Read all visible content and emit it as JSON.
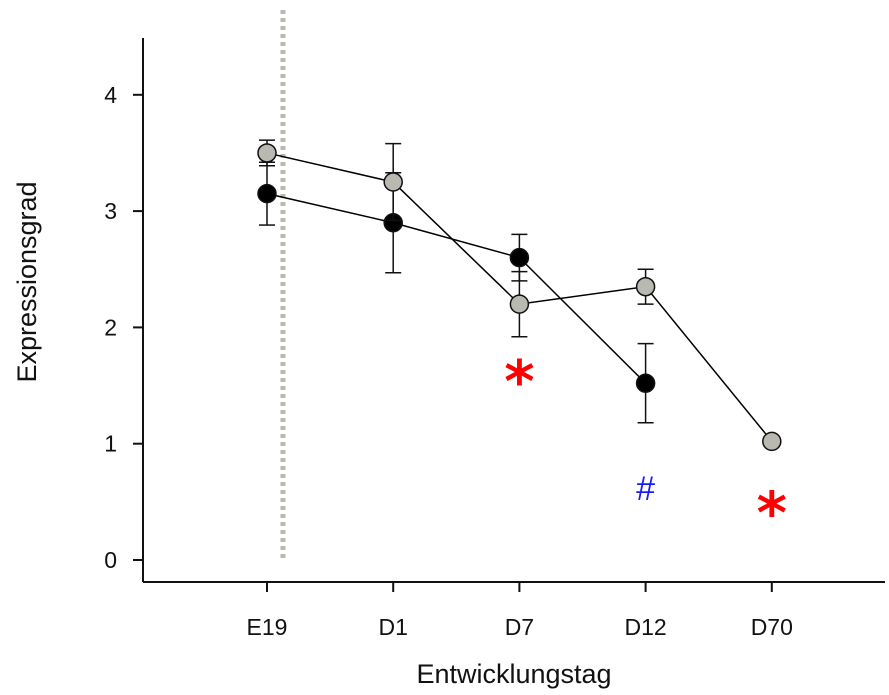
{
  "chart_data": {
    "type": "line",
    "categories": [
      "E19",
      "D1",
      "D7",
      "D12",
      "D70"
    ],
    "xlabel": "Entwicklungstag",
    "ylabel": "Expressionsgrad",
    "ylim": [
      0,
      4.3
    ],
    "yticks": [
      0,
      1,
      2,
      3,
      4
    ],
    "grid": false,
    "legend": "none",
    "series": [
      {
        "color": "#000000",
        "marker_fill": "#000000",
        "points": [
          {
            "category": "E19",
            "y": 3.15,
            "err": 0.27
          },
          {
            "category": "D1",
            "y": 2.9,
            "err": 0.43
          },
          {
            "category": "D7",
            "y": 2.6,
            "err": 0.2
          },
          {
            "category": "D12",
            "y": 1.52,
            "err": 0.34
          }
        ]
      },
      {
        "color": "#000000",
        "marker_fill": "#b9b9b1",
        "points": [
          {
            "category": "E19",
            "y": 3.5,
            "err": 0.11
          },
          {
            "category": "D1",
            "y": 3.25,
            "err": 0.33
          },
          {
            "category": "D7",
            "y": 2.2,
            "err": 0.28
          },
          {
            "category": "D12",
            "y": 2.35,
            "err": 0.15
          },
          {
            "category": "D70",
            "y": 1.02,
            "err": 0
          }
        ]
      }
    ],
    "reference_line": {
      "style": "dotted",
      "color": "#b9b9b1"
    },
    "annotations": [
      {
        "text": "*",
        "category": "D7",
        "y": 1.55,
        "color": "#ff0000",
        "kind": "star"
      },
      {
        "text": "#",
        "category": "D12",
        "y": 0.62,
        "color": "#1a1aff",
        "kind": "hash"
      },
      {
        "text": "*",
        "category": "D70",
        "y": 0.42,
        "color": "#ff0000",
        "kind": "star"
      }
    ]
  }
}
